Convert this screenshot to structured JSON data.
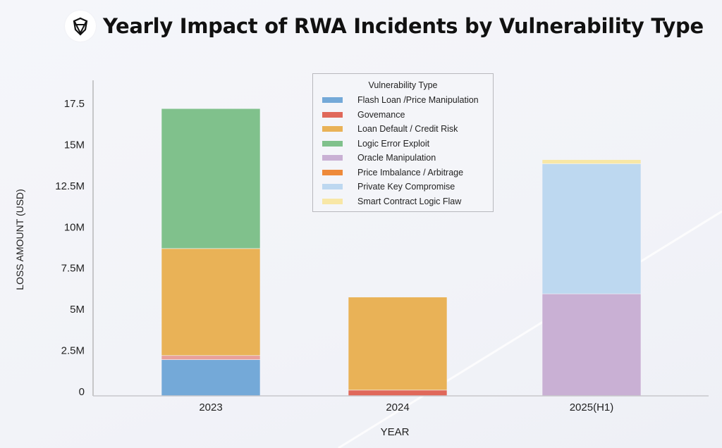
{
  "header": {
    "title": "Yearly Impact of RWA Incidents by Vulnerability Type",
    "logo_icon": "shield-logo-icon"
  },
  "chart_data": {
    "type": "bar",
    "stacked": true,
    "title": "Yearly Impact of RWA Incidents by Vulnerability Type",
    "xlabel": "YEAR",
    "ylabel": "LOSS AMOUNT (USD)",
    "categories": [
      "2023",
      "2024",
      "2025(H1)"
    ],
    "ylim": [
      0,
      19
    ],
    "yticks": [
      0,
      2.5,
      5,
      7.5,
      10,
      12.5,
      15,
      17.5
    ],
    "ytick_labels": [
      "0",
      "2.5M",
      "5M",
      "7.5M",
      "10M",
      "12.5M",
      "15M",
      "17.5"
    ],
    "units": "millions USD",
    "grid": false,
    "legend": {
      "title": "Vulnerability Type",
      "placement": "top-center"
    },
    "series": [
      {
        "name": "Flash Loan /Price Manipulation",
        "color": "#74a9d8",
        "values": [
          2.2,
          0,
          0
        ]
      },
      {
        "name": "Govemance",
        "color": "#e0685a",
        "values": [
          0.25,
          0.35,
          0
        ]
      },
      {
        "name": "Loan Default / Credit Risk",
        "color": "#e9b257",
        "values": [
          6.5,
          5.65,
          0
        ]
      },
      {
        "name": "Logic Error Exploit",
        "color": "#80c18c",
        "values": [
          8.5,
          0,
          0
        ]
      },
      {
        "name": "Oracle Manipulation",
        "color": "#c9b0d4",
        "values": [
          0,
          0,
          6.2
        ]
      },
      {
        "name": "Price Imbalance / Arbitrage",
        "color": "#ee8a3a",
        "values": [
          0,
          0,
          0
        ]
      },
      {
        "name": "Private Key Compromise",
        "color": "#bdd8f0",
        "values": [
          0,
          0,
          7.9
        ]
      },
      {
        "name": "Smart Contract Logic Flaw",
        "color": "#f8e7a6",
        "values": [
          0,
          0,
          0.25
        ]
      }
    ],
    "stack_order_note_colors": {
      "2023_top": "#e9a09a"
    }
  }
}
